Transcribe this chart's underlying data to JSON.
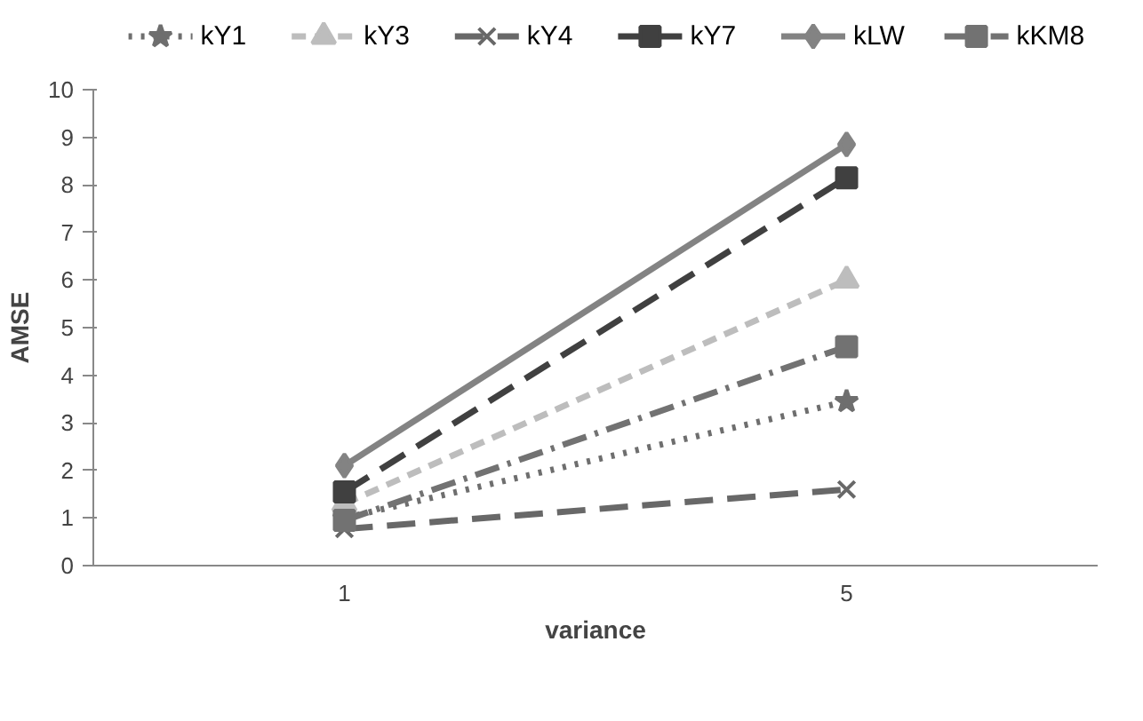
{
  "chart_data": {
    "type": "line",
    "xlabel": "variance",
    "ylabel": "AMSE",
    "categories": [
      "1",
      "5"
    ],
    "ylim": [
      0,
      10
    ],
    "yticks": [
      0,
      1,
      2,
      3,
      4,
      5,
      6,
      7,
      8,
      9,
      10
    ],
    "grid": false,
    "legend": "top",
    "series": [
      {
        "name": "kY1",
        "color": "#6e6e6e",
        "values": [
          1.0,
          3.45
        ],
        "marker": "star",
        "line_style": "dotted"
      },
      {
        "name": "kY3",
        "color": "#bdbdbd",
        "values": [
          1.3,
          6.0
        ],
        "marker": "triangle",
        "line_style": "dashed"
      },
      {
        "name": "kY4",
        "color": "#686868",
        "values": [
          0.77,
          1.6
        ],
        "marker": "cross",
        "line_style": "longdash"
      },
      {
        "name": "kY7",
        "color": "#404040",
        "values": [
          1.55,
          8.15
        ],
        "marker": "square",
        "line_style": "longdash"
      },
      {
        "name": "kLW",
        "color": "#838383",
        "values": [
          2.1,
          8.85
        ],
        "marker": "diamond",
        "line_style": "solid"
      },
      {
        "name": "kKM8",
        "color": "#727272",
        "values": [
          0.95,
          4.6
        ],
        "marker": "square",
        "line_style": "dashdot"
      }
    ]
  }
}
